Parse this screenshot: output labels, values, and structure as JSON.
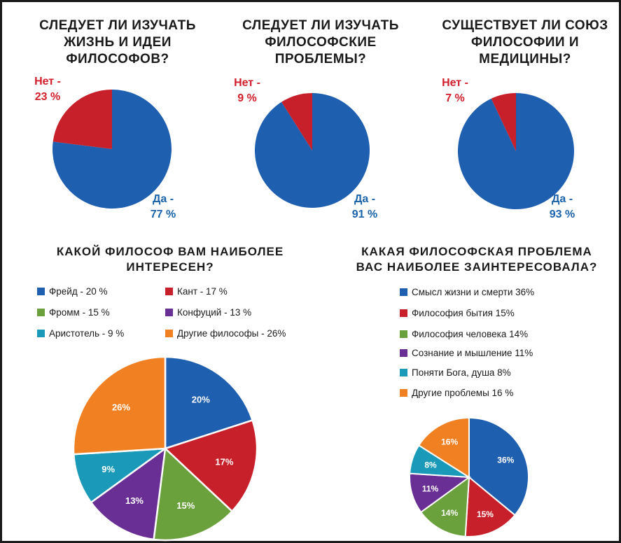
{
  "chart_data": [
    {
      "type": "pie",
      "title": [
        "СЛЕДУЕТ ЛИ ИЗУЧАТЬ",
        "ЖИЗНЬ И ИДЕИ",
        "ФИЛОСОФОВ?"
      ],
      "labels": [
        "Да",
        "Нет"
      ],
      "values": [
        77,
        23
      ],
      "label_text": {
        "yes": [
          "Да -",
          "77 %"
        ],
        "no": [
          "Нет -",
          "23 %"
        ]
      },
      "colors": [
        "#1f5fb0",
        "#c8202a"
      ]
    },
    {
      "type": "pie",
      "title": [
        "СЛЕДУЕТ ЛИ ИЗУЧАТЬ",
        "ФИЛОСОФСКИЕ",
        "ПРОБЛЕМЫ?"
      ],
      "labels": [
        "Да",
        "Нет"
      ],
      "values": [
        91,
        9
      ],
      "label_text": {
        "yes": [
          "Да -",
          "91 %"
        ],
        "no": [
          "Нет -",
          "9 %"
        ]
      },
      "colors": [
        "#1f5fb0",
        "#c8202a"
      ]
    },
    {
      "type": "pie",
      "title": [
        "СУЩЕСТВУЕТ ЛИ СОЮЗ",
        "ФИЛОСОФИИ И",
        "МЕДИЦИНЫ?"
      ],
      "labels": [
        "Да",
        "Нет"
      ],
      "values": [
        93,
        7
      ],
      "label_text": {
        "yes": [
          "Да -",
          "93 %"
        ],
        "no": [
          "Нет -",
          "7 %"
        ]
      },
      "colors": [
        "#1f5fb0",
        "#c8202a"
      ]
    },
    {
      "type": "pie",
      "title": [
        "КАКОЙ ФИЛОСОФ ВАМ НАИБОЛЕЕ",
        "ИНТЕРЕСЕН?"
      ],
      "legend": [
        "Фрейд - 20 %",
        "Кант - 17 %",
        "Фромм - 15 %",
        "Конфуций - 13 %",
        "Аристотель - 9 %",
        "Другие философы - 26%"
      ],
      "labels": [
        "Фрейд",
        "Кант",
        "Фромм",
        "Конфуций",
        "Аристотель",
        "Другие философы"
      ],
      "values": [
        20,
        17,
        15,
        13,
        9,
        26
      ],
      "slice_labels": [
        "20%",
        "17%",
        "15%",
        "13%",
        "9%",
        "26%"
      ],
      "colors": [
        "#1f5fb0",
        "#c8202a",
        "#6aa13c",
        "#6a2f95",
        "#1a9ab8",
        "#f08022"
      ]
    },
    {
      "type": "pie",
      "title": [
        "КАКАЯ ФИЛОСОФСКАЯ ПРОБЛЕМА",
        "ВАС НАИБОЛЕЕ ЗАИНТЕРЕСОВАЛА?"
      ],
      "legend": [
        "Смысл жизни и смерти 36%",
        "Философия бытия 15%",
        "Философия человека 14%",
        "Сознание и мышление 11%",
        "Поняти Бога, душа 8%",
        "Другие проблемы 16 %"
      ],
      "labels": [
        "Смысл жизни и смерти",
        "Философия бытия",
        "Философия человека",
        "Сознание и мышление",
        "Поняти Бога, душа",
        "Другие проблемы"
      ],
      "values": [
        36,
        15,
        14,
        11,
        8,
        16
      ],
      "slice_labels": [
        "36%",
        "15%",
        "14%",
        "11%",
        "8%",
        "16%"
      ],
      "colors": [
        "#1f5fb0",
        "#c8202a",
        "#6aa13c",
        "#6a2f95",
        "#1a9ab8",
        "#f08022"
      ]
    }
  ]
}
